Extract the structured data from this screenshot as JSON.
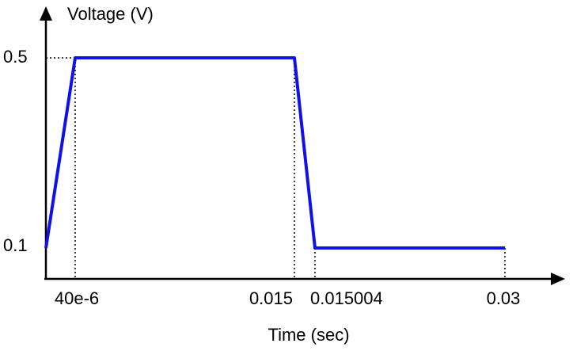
{
  "axes": {
    "y_label": "Voltage (V)",
    "x_label": "Time (sec)"
  },
  "y_ticks": [
    "0.5",
    "0.1"
  ],
  "x_ticks": [
    "40e-6",
    "0.015",
    "0.015004",
    "0.03"
  ]
}
